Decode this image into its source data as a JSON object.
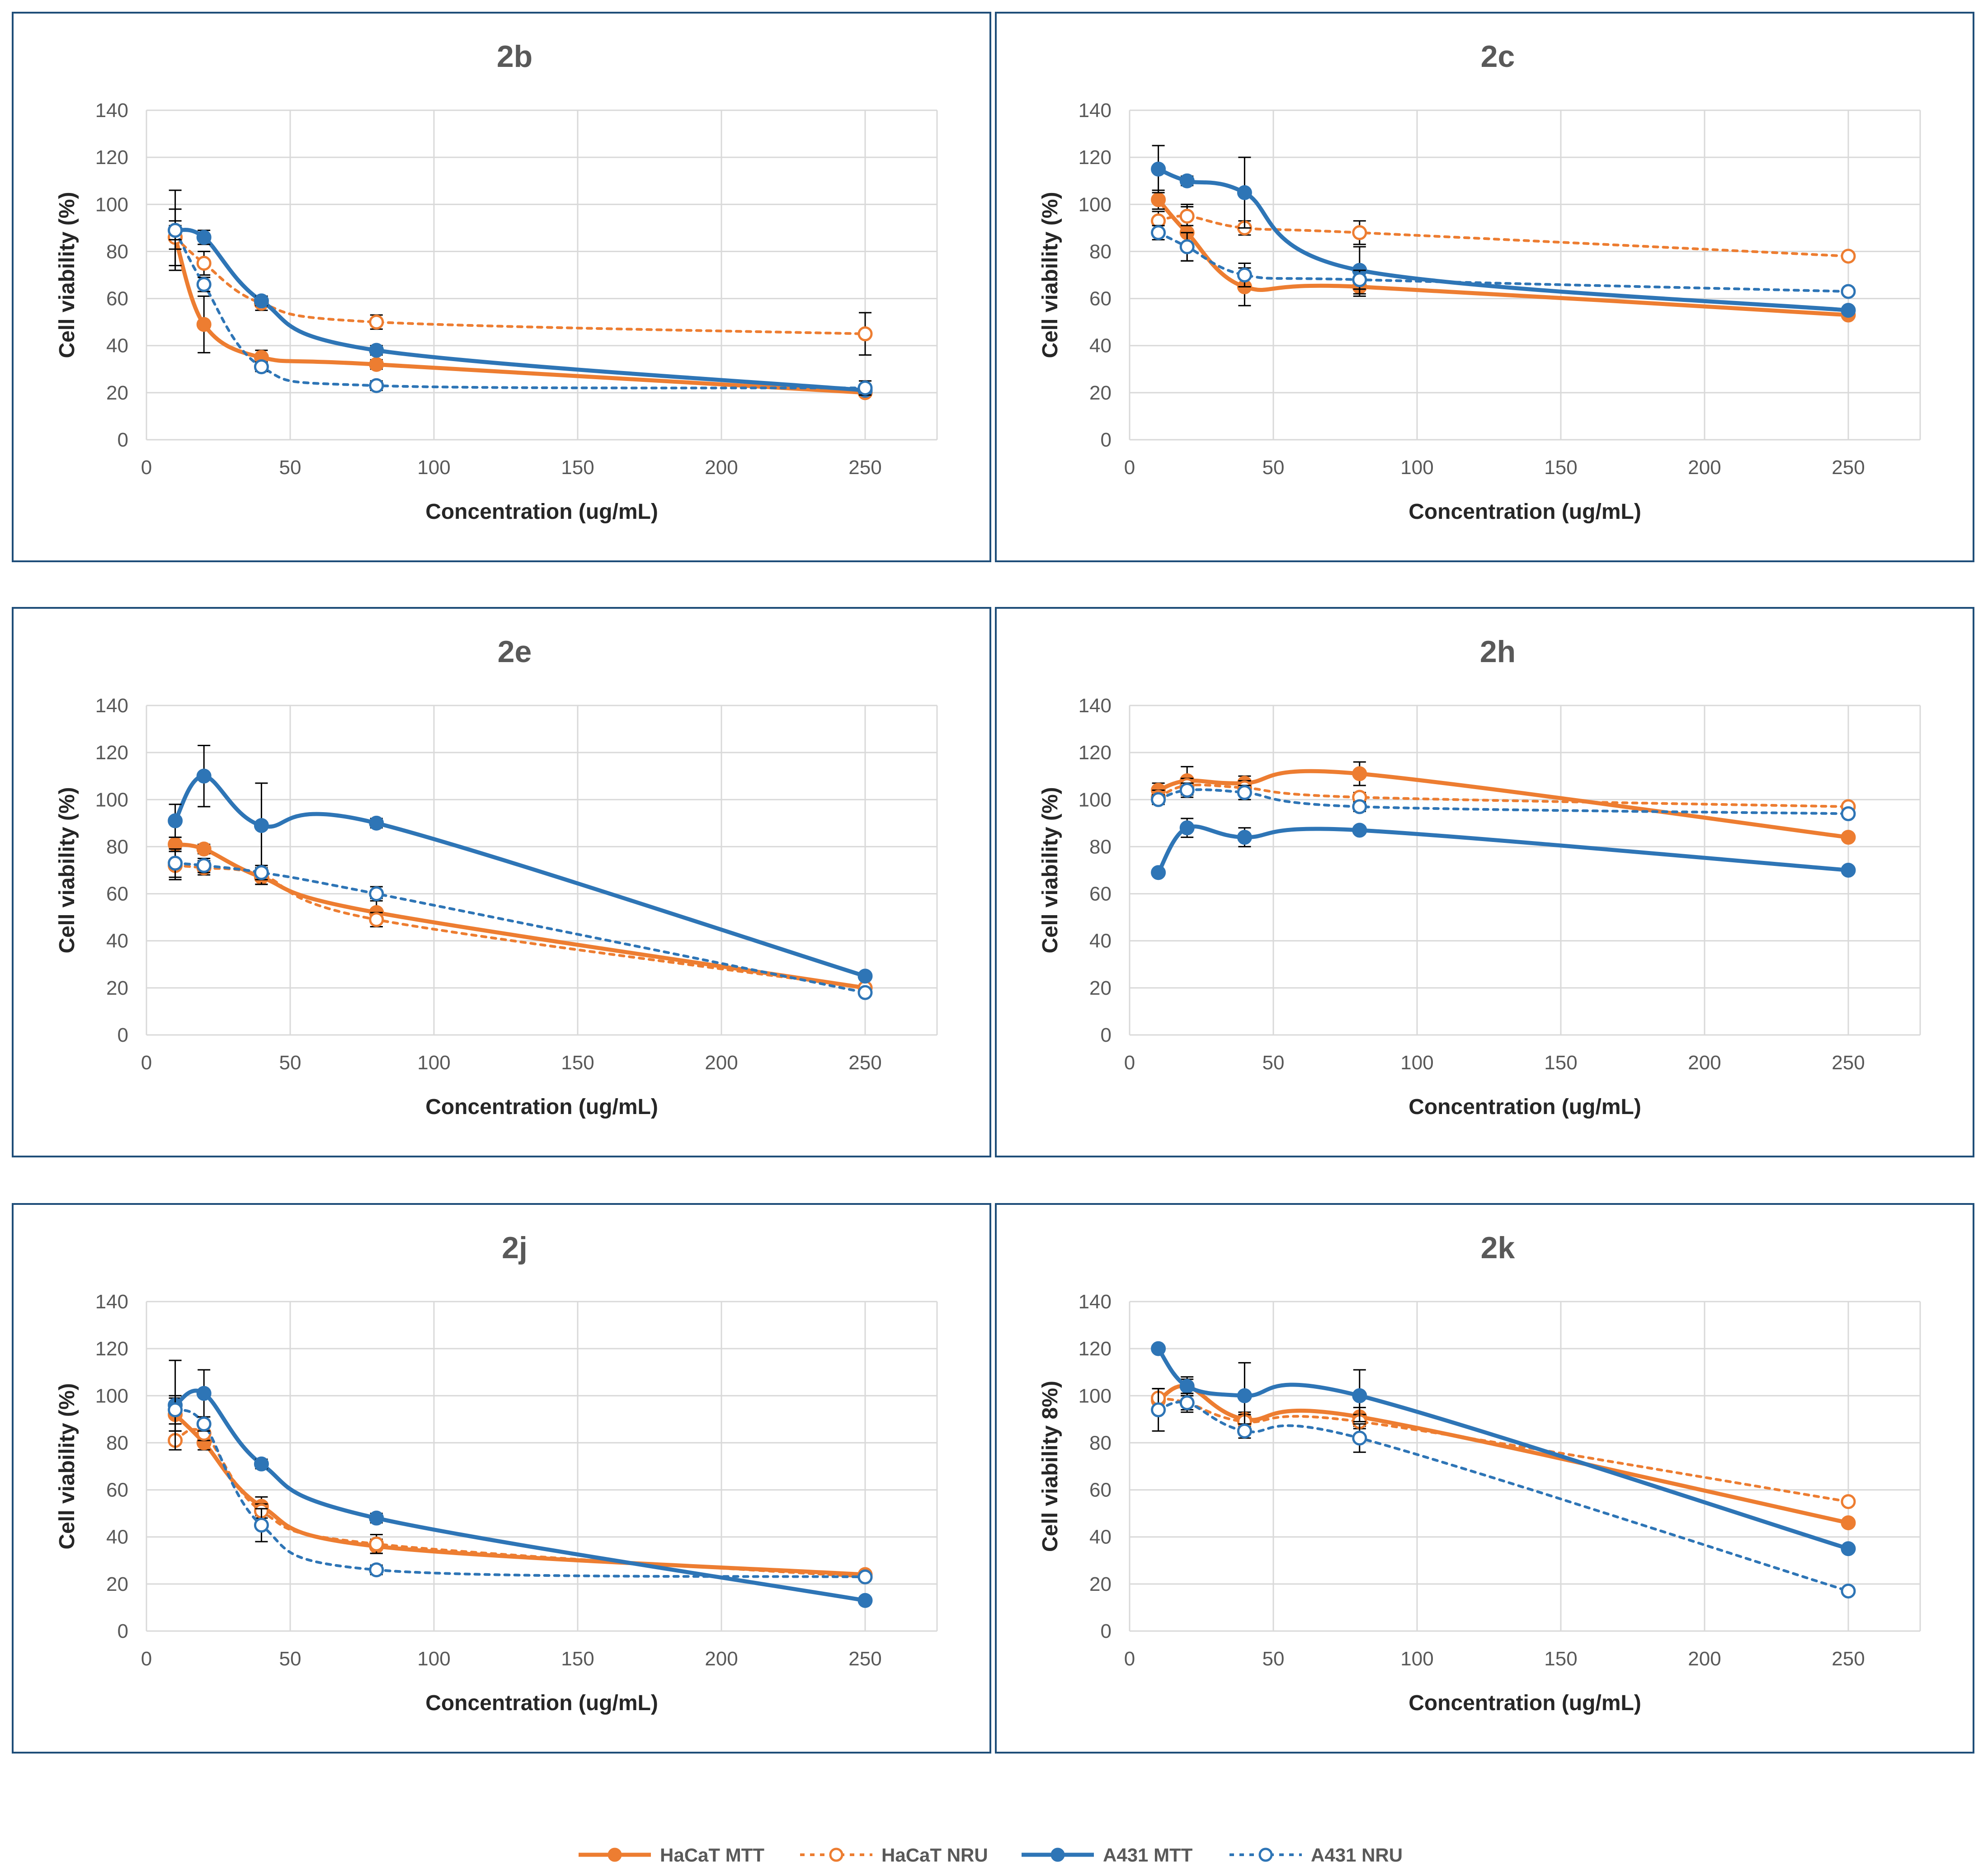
{
  "figure": {
    "legend": [
      {
        "label": "HaCaT MTT",
        "color": "#ED7D31",
        "dashed": false,
        "filled": true
      },
      {
        "label": "HaCaT NRU",
        "color": "#ED7D31",
        "dashed": true,
        "filled": false
      },
      {
        "label": "A431 MTT",
        "color": "#2E75B6",
        "dashed": false,
        "filled": true
      },
      {
        "label": "A431 NRU",
        "color": "#2E75B6",
        "dashed": true,
        "filled": false
      }
    ]
  },
  "chart_data": [
    {
      "type": "line",
      "title": "2b",
      "xlabel": "Concentration (ug/mL)",
      "ylabel": "Cell viability (%)",
      "xlim": [
        0,
        275
      ],
      "ylim": [
        0,
        140
      ],
      "xticks": [
        0,
        50,
        100,
        150,
        200,
        250
      ],
      "yticks": [
        0,
        20,
        40,
        60,
        80,
        100,
        120,
        140
      ],
      "x": [
        10,
        20,
        40,
        80,
        250
      ],
      "series": [
        {
          "name": "HaCaT MTT",
          "values": [
            86,
            49,
            35,
            32,
            20
          ],
          "errors": [
            12,
            12,
            3,
            2,
            1
          ]
        },
        {
          "name": "HaCaT NRU",
          "values": [
            86,
            75,
            58,
            50,
            45
          ],
          "errors": [
            5,
            5,
            3,
            3,
            9
          ]
        },
        {
          "name": "A431 MTT",
          "values": [
            89,
            86,
            59,
            38,
            21
          ],
          "errors": [
            17,
            3,
            2,
            2,
            1
          ]
        },
        {
          "name": "A431 NRU",
          "values": [
            89,
            66,
            31,
            23,
            22
          ],
          "errors": [
            4,
            3,
            2,
            2,
            3
          ]
        }
      ]
    },
    {
      "type": "line",
      "title": "2c",
      "xlabel": "Concentration (ug/mL)",
      "ylabel": "Cell viability (%)",
      "xlim": [
        0,
        275
      ],
      "ylim": [
        0,
        140
      ],
      "xticks": [
        0,
        50,
        100,
        150,
        200,
        250
      ],
      "yticks": [
        0,
        20,
        40,
        60,
        80,
        100,
        120,
        140
      ],
      "x": [
        10,
        20,
        40,
        80,
        250
      ],
      "series": [
        {
          "name": "HaCaT MTT",
          "values": [
            102,
            88,
            65,
            65,
            53
          ],
          "errors": [
            4,
            12,
            8,
            4,
            1
          ]
        },
        {
          "name": "HaCaT NRU",
          "values": [
            93,
            95,
            90,
            88,
            78
          ],
          "errors": [
            4,
            4,
            3,
            5,
            1
          ]
        },
        {
          "name": "A431 MTT",
          "values": [
            115,
            110,
            105,
            72,
            55
          ],
          "errors": [
            10,
            2,
            15,
            10,
            1
          ]
        },
        {
          "name": "A431 NRU",
          "values": [
            88,
            82,
            70,
            68,
            63
          ],
          "errors": [
            3,
            6,
            5,
            4,
            1
          ]
        }
      ]
    },
    {
      "type": "line",
      "title": "2e",
      "xlabel": "Concentration (ug/mL)",
      "ylabel": "Cell viability (%)",
      "xlim": [
        0,
        275
      ],
      "ylim": [
        0,
        140
      ],
      "xticks": [
        0,
        50,
        100,
        150,
        200,
        250
      ],
      "yticks": [
        0,
        20,
        40,
        60,
        80,
        100,
        120,
        140
      ],
      "x": [
        10,
        20,
        40,
        80,
        250
      ],
      "series": [
        {
          "name": "HaCaT MTT",
          "values": [
            81,
            79,
            67,
            52,
            20
          ],
          "errors": [
            3,
            2,
            3,
            6,
            1
          ]
        },
        {
          "name": "HaCaT NRU",
          "values": [
            72,
            71,
            68,
            49,
            20
          ],
          "errors": [
            6,
            3,
            4,
            3,
            1
          ]
        },
        {
          "name": "A431 MTT",
          "values": [
            91,
            110,
            89,
            90,
            25
          ],
          "errors": [
            7,
            13,
            18,
            2,
            1
          ]
        },
        {
          "name": "A431 NRU",
          "values": [
            73,
            72,
            69,
            60,
            18
          ],
          "errors": [
            6,
            3,
            3,
            3,
            1
          ]
        }
      ]
    },
    {
      "type": "line",
      "title": "2h",
      "xlabel": "Concentration (ug/mL)",
      "ylabel": "Cell viability (%)",
      "xlim": [
        0,
        275
      ],
      "ylim": [
        0,
        140
      ],
      "xticks": [
        0,
        50,
        100,
        150,
        200,
        250
      ],
      "yticks": [
        0,
        20,
        40,
        60,
        80,
        100,
        120,
        140
      ],
      "x": [
        10,
        20,
        40,
        80,
        250
      ],
      "series": [
        {
          "name": "HaCaT MTT",
          "values": [
            104,
            108,
            107,
            111,
            84
          ],
          "errors": [
            3,
            6,
            3,
            5,
            1
          ]
        },
        {
          "name": "HaCaT NRU",
          "values": [
            101,
            106,
            105,
            101,
            97
          ],
          "errors": [
            3,
            3,
            3,
            2,
            1
          ]
        },
        {
          "name": "A431 MTT",
          "values": [
            69,
            88,
            84,
            87,
            70
          ],
          "errors": [
            1,
            4,
            4,
            1,
            1
          ]
        },
        {
          "name": "A431 NRU",
          "values": [
            100,
            104,
            103,
            97,
            94
          ],
          "errors": [
            2,
            3,
            3,
            2,
            1
          ]
        }
      ]
    },
    {
      "type": "line",
      "title": "2j",
      "xlabel": "Concentration (ug/mL)",
      "ylabel": "Cell viability (%)",
      "xlim": [
        0,
        275
      ],
      "ylim": [
        0,
        140
      ],
      "xticks": [
        0,
        50,
        100,
        150,
        200,
        250
      ],
      "yticks": [
        0,
        20,
        40,
        60,
        80,
        100,
        120,
        140
      ],
      "x": [
        10,
        20,
        40,
        80,
        250
      ],
      "series": [
        {
          "name": "HaCaT MTT",
          "values": [
            92,
            80,
            53,
            36,
            24
          ],
          "errors": [
            7,
            3,
            4,
            3,
            1
          ]
        },
        {
          "name": "HaCaT NRU",
          "values": [
            81,
            84,
            51,
            37,
            23
          ],
          "errors": [
            4,
            3,
            3,
            4,
            1
          ]
        },
        {
          "name": "A431 MTT",
          "values": [
            96,
            101,
            71,
            48,
            13
          ],
          "errors": [
            19,
            10,
            2,
            2,
            1
          ]
        },
        {
          "name": "A431 NRU",
          "values": [
            94,
            88,
            45,
            26,
            23
          ],
          "errors": [
            6,
            3,
            7,
            2,
            1
          ]
        }
      ]
    },
    {
      "type": "line",
      "title": "2k",
      "xlabel": "Concentration (ug/mL)",
      "ylabel": "Cell viability 8%)",
      "xlim": [
        0,
        275
      ],
      "ylim": [
        0,
        140
      ],
      "xticks": [
        0,
        50,
        100,
        150,
        200,
        250
      ],
      "yticks": [
        0,
        20,
        40,
        60,
        80,
        100,
        120,
        140
      ],
      "x": [
        10,
        20,
        40,
        80,
        250
      ],
      "series": [
        {
          "name": "HaCaT MTT",
          "values": [
            98,
            104,
            90,
            91,
            46
          ],
          "errors": [
            5,
            3,
            3,
            4,
            1
          ]
        },
        {
          "name": "HaCaT NRU",
          "values": [
            99,
            97,
            89,
            89,
            55
          ],
          "errors": [
            4,
            3,
            3,
            3,
            1
          ]
        },
        {
          "name": "A431 MTT",
          "values": [
            120,
            104,
            100,
            100,
            35
          ],
          "errors": [
            1,
            4,
            14,
            11,
            1
          ]
        },
        {
          "name": "A431 NRU",
          "values": [
            94,
            97,
            85,
            82,
            17
          ],
          "errors": [
            9,
            4,
            3,
            6,
            1
          ]
        }
      ]
    }
  ]
}
